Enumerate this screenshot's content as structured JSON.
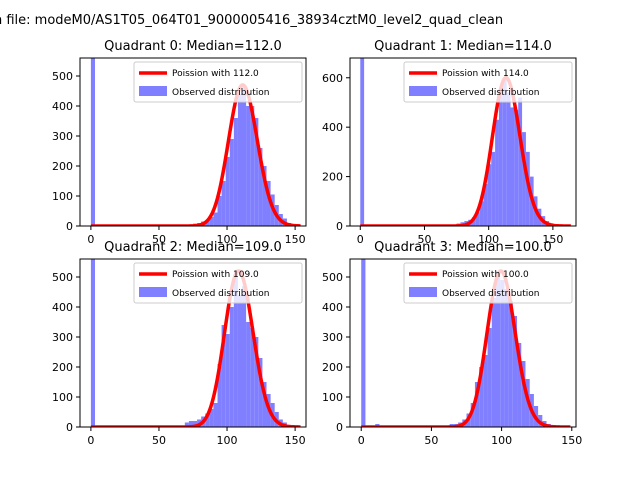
{
  "figure": {
    "suptitle": "n file: modeM0/AS1T05_064T01_9000005416_38934cztM0_level2_quad_clean"
  },
  "colors": {
    "poisson": "#ff0000",
    "observed": "#7f7fff"
  },
  "chart_data": [
    {
      "type": "bar",
      "title": "Quadrant 0: Median=112.0",
      "xlim": [
        -8,
        158
      ],
      "ylim": [
        0,
        560
      ],
      "xticks": [
        0,
        50,
        100,
        150
      ],
      "yticks": [
        0,
        100,
        200,
        300,
        400,
        500
      ],
      "legend_position": "upper right",
      "legend": [
        "Poission with 112.0",
        "Observed distribution"
      ],
      "median": 112.0,
      "spike": {
        "x": 0,
        "value": 560
      },
      "histogram": [
        {
          "x": 60,
          "value": 2
        },
        {
          "x": 63,
          "value": 2
        },
        {
          "x": 66,
          "value": 3
        },
        {
          "x": 69,
          "value": 4
        },
        {
          "x": 72,
          "value": 5
        },
        {
          "x": 75,
          "value": 8
        },
        {
          "x": 78,
          "value": 10
        },
        {
          "x": 81,
          "value": 15
        },
        {
          "x": 84,
          "value": 20
        },
        {
          "x": 87,
          "value": 30
        },
        {
          "x": 90,
          "value": 45
        },
        {
          "x": 93,
          "value": 100
        },
        {
          "x": 96,
          "value": 150
        },
        {
          "x": 99,
          "value": 230
        },
        {
          "x": 102,
          "value": 290
        },
        {
          "x": 105,
          "value": 360
        },
        {
          "x": 108,
          "value": 440
        },
        {
          "x": 111,
          "value": 470
        },
        {
          "x": 114,
          "value": 400
        },
        {
          "x": 117,
          "value": 400
        },
        {
          "x": 120,
          "value": 360
        },
        {
          "x": 123,
          "value": 260
        },
        {
          "x": 126,
          "value": 200
        },
        {
          "x": 129,
          "value": 150
        },
        {
          "x": 132,
          "value": 105
        },
        {
          "x": 135,
          "value": 70
        },
        {
          "x": 138,
          "value": 40
        },
        {
          "x": 141,
          "value": 25
        },
        {
          "x": 144,
          "value": 10
        },
        {
          "x": 147,
          "value": 5
        },
        {
          "x": 150,
          "value": 2
        }
      ]
    },
    {
      "type": "bar",
      "title": "Quadrant 1: Median=114.0",
      "xlim": [
        -8,
        168
      ],
      "ylim": [
        0,
        680
      ],
      "xticks": [
        0,
        50,
        100,
        150
      ],
      "yticks": [
        0,
        200,
        400,
        600
      ],
      "legend_position": "upper right",
      "legend": [
        "Poission with 114.0",
        "Observed distribution"
      ],
      "median": 114.0,
      "spike": {
        "x": 0,
        "value": 680
      },
      "histogram": [
        {
          "x": 60,
          "value": 2
        },
        {
          "x": 65,
          "value": 3
        },
        {
          "x": 70,
          "value": 5
        },
        {
          "x": 75,
          "value": 10
        },
        {
          "x": 78,
          "value": 15
        },
        {
          "x": 81,
          "value": 20
        },
        {
          "x": 84,
          "value": 25
        },
        {
          "x": 87,
          "value": 35
        },
        {
          "x": 90,
          "value": 55
        },
        {
          "x": 93,
          "value": 100
        },
        {
          "x": 96,
          "value": 170
        },
        {
          "x": 99,
          "value": 250
        },
        {
          "x": 102,
          "value": 300
        },
        {
          "x": 105,
          "value": 430
        },
        {
          "x": 108,
          "value": 560
        },
        {
          "x": 111,
          "value": 600
        },
        {
          "x": 114,
          "value": 540
        },
        {
          "x": 117,
          "value": 480
        },
        {
          "x": 120,
          "value": 470
        },
        {
          "x": 123,
          "value": 520
        },
        {
          "x": 126,
          "value": 380
        },
        {
          "x": 129,
          "value": 300
        },
        {
          "x": 132,
          "value": 200
        },
        {
          "x": 135,
          "value": 120
        },
        {
          "x": 138,
          "value": 70
        },
        {
          "x": 141,
          "value": 40
        },
        {
          "x": 144,
          "value": 20
        },
        {
          "x": 147,
          "value": 10
        },
        {
          "x": 150,
          "value": 5
        },
        {
          "x": 153,
          "value": 2
        }
      ]
    },
    {
      "type": "bar",
      "title": "Quadrant 2: Median=109.0",
      "xlim": [
        -8,
        158
      ],
      "ylim": [
        0,
        560
      ],
      "xticks": [
        0,
        50,
        100,
        150
      ],
      "yticks": [
        0,
        100,
        200,
        300,
        400,
        500
      ],
      "legend_position": "upper right",
      "legend": [
        "Poission with 109.0",
        "Observed distribution"
      ],
      "median": 109.0,
      "spike": {
        "x": 0,
        "value": 560
      },
      "histogram": [
        {
          "x": 63,
          "value": 3
        },
        {
          "x": 66,
          "value": 5
        },
        {
          "x": 69,
          "value": 15
        },
        {
          "x": 72,
          "value": 20
        },
        {
          "x": 75,
          "value": 20
        },
        {
          "x": 78,
          "value": 25
        },
        {
          "x": 81,
          "value": 35
        },
        {
          "x": 84,
          "value": 45
        },
        {
          "x": 87,
          "value": 60
        },
        {
          "x": 90,
          "value": 80
        },
        {
          "x": 93,
          "value": 210
        },
        {
          "x": 96,
          "value": 340
        },
        {
          "x": 99,
          "value": 310
        },
        {
          "x": 102,
          "value": 400
        },
        {
          "x": 105,
          "value": 520
        },
        {
          "x": 108,
          "value": 440
        },
        {
          "x": 111,
          "value": 470
        },
        {
          "x": 114,
          "value": 350
        },
        {
          "x": 117,
          "value": 330
        },
        {
          "x": 120,
          "value": 300
        },
        {
          "x": 123,
          "value": 230
        },
        {
          "x": 126,
          "value": 150
        },
        {
          "x": 129,
          "value": 110
        },
        {
          "x": 132,
          "value": 80
        },
        {
          "x": 135,
          "value": 50
        },
        {
          "x": 138,
          "value": 25
        },
        {
          "x": 141,
          "value": 15
        },
        {
          "x": 144,
          "value": 5
        },
        {
          "x": 147,
          "value": 2
        }
      ]
    },
    {
      "type": "bar",
      "title": "Quadrant 3: Median=100.0",
      "xlim": [
        -8,
        153
      ],
      "ylim": [
        0,
        560
      ],
      "xticks": [
        0,
        50,
        100,
        150
      ],
      "yticks": [
        0,
        100,
        200,
        300,
        400,
        500
      ],
      "legend_position": "upper right",
      "legend": [
        "Poission with 100.0",
        "Observed distribution"
      ],
      "median": 100.0,
      "spike": {
        "x": 0,
        "value": 560
      },
      "histogram": [
        {
          "x": 10,
          "value": 10
        },
        {
          "x": 50,
          "value": 3
        },
        {
          "x": 55,
          "value": 5
        },
        {
          "x": 60,
          "value": 5
        },
        {
          "x": 63,
          "value": 10
        },
        {
          "x": 66,
          "value": 10
        },
        {
          "x": 69,
          "value": 15
        },
        {
          "x": 72,
          "value": 25
        },
        {
          "x": 75,
          "value": 45
        },
        {
          "x": 78,
          "value": 80
        },
        {
          "x": 81,
          "value": 150
        },
        {
          "x": 84,
          "value": 200
        },
        {
          "x": 87,
          "value": 240
        },
        {
          "x": 90,
          "value": 330
        },
        {
          "x": 93,
          "value": 430
        },
        {
          "x": 96,
          "value": 520
        },
        {
          "x": 99,
          "value": 490
        },
        {
          "x": 102,
          "value": 460
        },
        {
          "x": 105,
          "value": 420
        },
        {
          "x": 108,
          "value": 370
        },
        {
          "x": 111,
          "value": 280
        },
        {
          "x": 114,
          "value": 220
        },
        {
          "x": 117,
          "value": 160
        },
        {
          "x": 120,
          "value": 110
        },
        {
          "x": 123,
          "value": 70
        },
        {
          "x": 126,
          "value": 40
        },
        {
          "x": 129,
          "value": 20
        },
        {
          "x": 132,
          "value": 10
        },
        {
          "x": 135,
          "value": 5
        },
        {
          "x": 138,
          "value": 3
        }
      ]
    }
  ]
}
